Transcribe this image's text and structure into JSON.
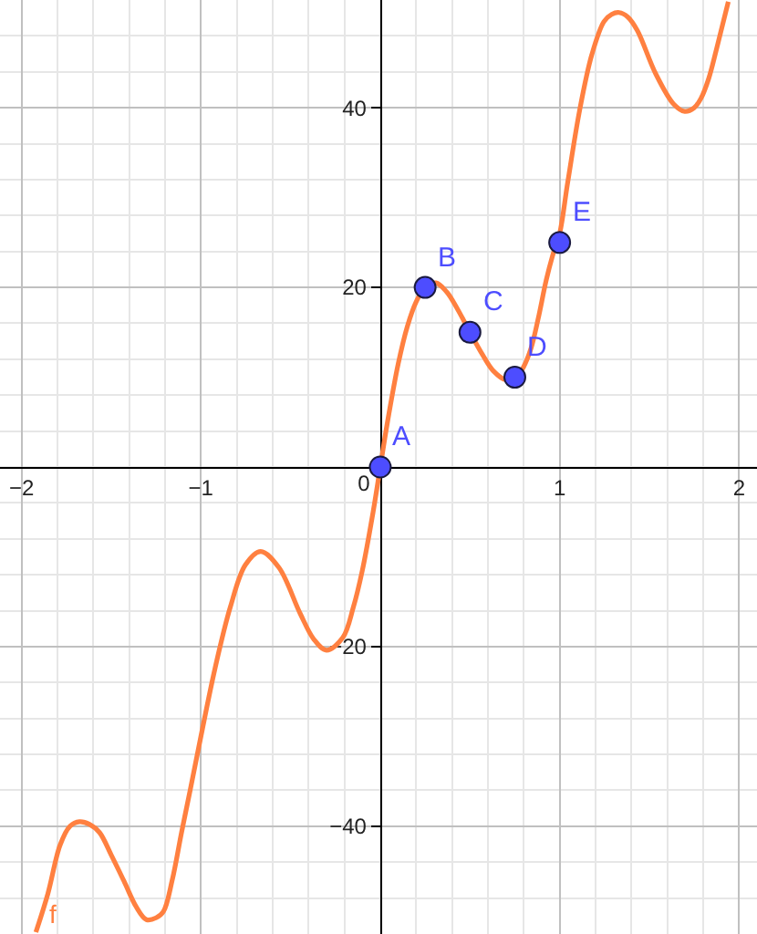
{
  "chart_data": {
    "type": "line",
    "xlim": [
      -2.12,
      2.1
    ],
    "ylim": [
      -52,
      52
    ],
    "xticks": [
      -2,
      -1,
      0,
      1,
      2
    ],
    "yticks": [
      -40,
      -20,
      20,
      40
    ],
    "grid": true,
    "legend": false,
    "series": [
      {
        "name": "f",
        "color": "#ff8040",
        "line_style": "solid",
        "x": [
          -1.92,
          -1.853,
          -1.785,
          -1.73,
          -1.677,
          -1.62,
          -1.565,
          -1.5,
          -1.429,
          -1.36,
          -1.304,
          -1.25,
          -1.209,
          -1.16,
          -1.108,
          -1.06,
          -1.0,
          -0.921,
          -0.836,
          -0.752,
          -0.667,
          -0.565,
          -0.447,
          -0.37,
          -0.3,
          -0.209,
          -0.15,
          -0.1,
          -0.04,
          0,
          0.04,
          0.1,
          0.15,
          0.2,
          0.25,
          0.31,
          0.37,
          0.43,
          0.5,
          0.57,
          0.63,
          0.7,
          0.76,
          0.8,
          0.84,
          0.88,
          0.925,
          0.96,
          1.0,
          1.044,
          1.112,
          1.179,
          1.247,
          1.29,
          1.331,
          1.38,
          1.433,
          1.535,
          1.636,
          1.697,
          1.75,
          1.789,
          1.83,
          1.874,
          1.94
        ],
        "values": [
          -51.8,
          -47.5,
          -42.1,
          -40.0,
          -39.5,
          -39.8,
          -40.7,
          -43.2,
          -46.1,
          -49.0,
          -50.4,
          -50.2,
          -49.5,
          -46.0,
          -40.7,
          -36.0,
          -30.0,
          -22.4,
          -15.6,
          -10.9,
          -9.4,
          -11.2,
          -16.3,
          -19.2,
          -20.4,
          -19.0,
          -15.6,
          -11.5,
          -5.0,
          0,
          5.0,
          11.5,
          15.6,
          18.4,
          20.0,
          20.5,
          19.5,
          17.6,
          15.0,
          12.5,
          10.7,
          9.7,
          10.0,
          11.2,
          13.2,
          16.5,
          20.8,
          23.5,
          26.0,
          31.6,
          39.8,
          45.9,
          49.6,
          50.4,
          50.6,
          50.1,
          48.6,
          43.8,
          40.4,
          39.6,
          40.0,
          41.1,
          43.2,
          46.5,
          51.8
        ]
      },
      {
        "type": "scatter",
        "color": "#4d4dff",
        "marker": "circle",
        "x": [
          0,
          0.25,
          0.5,
          0.75,
          1
        ],
        "values": [
          0,
          20,
          15,
          10,
          25
        ]
      }
    ],
    "annotations": [
      {
        "text": "A",
        "x": 0,
        "y": 0
      },
      {
        "text": "B",
        "x": 0.25,
        "y": 20
      },
      {
        "text": "C",
        "x": 0.5,
        "y": 15
      },
      {
        "text": "D",
        "x": 0.75,
        "y": 10
      },
      {
        "text": "E",
        "x": 1,
        "y": 25
      }
    ]
  }
}
